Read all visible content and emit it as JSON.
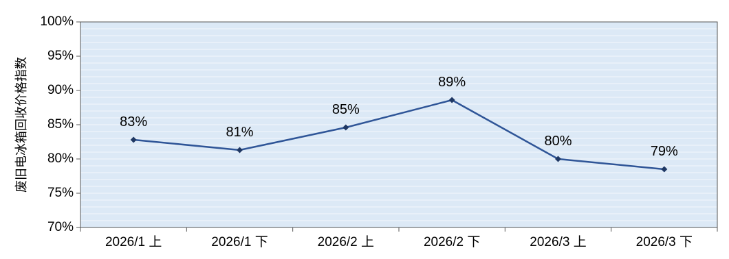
{
  "chart_data": {
    "type": "line",
    "categories": [
      "2026/1 上",
      "2026/1 下",
      "2026/2 上",
      "2026/2 下",
      "2026/3 上",
      "2026/3 下"
    ],
    "values": [
      82.8,
      81.3,
      84.6,
      88.6,
      80.0,
      78.5
    ],
    "data_labels": [
      "83%",
      "81%",
      "85%",
      "89%",
      "80%",
      "79%"
    ],
    "ylabel": "废旧电冰箱回收价格指数",
    "ylim": [
      70,
      100
    ],
    "yticks": [
      70,
      75,
      80,
      85,
      90,
      95,
      100
    ],
    "ytick_labels": [
      "70%",
      "75%",
      "80%",
      "85%",
      "90%",
      "95%",
      "100%"
    ],
    "grid": true,
    "colors": {
      "line": "#2f5597",
      "marker": "#1f3864",
      "plot_bg": "#dce9f6",
      "grid": "#f4f8fc"
    }
  }
}
